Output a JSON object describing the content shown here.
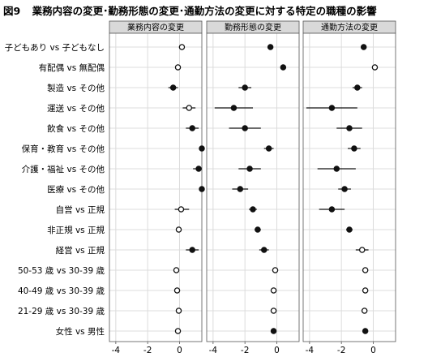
{
  "figure": {
    "figure_number": "図9",
    "title": "業務内容の変更･勤務形態の変更･通勤方法の変更に対する特定の職種の影響"
  },
  "chart_data": {
    "type": "scatter",
    "style": "forest-plot with point estimates and horizontal error bars; filled dot = significant, open dot = not significant",
    "grid": true,
    "shared_rows": true,
    "categories": [
      "子どもあり vs 子どもなし",
      "有配偶 vs 無配偶",
      "製造 vs その他",
      "運送 vs その他",
      "飲食 vs その他",
      "保育・教育 vs その他",
      "介護・福祉 vs その他",
      "医療 vs その他",
      "自営 vs 正規",
      "非正規 vs 正規",
      "経営 vs 正規",
      "50-53 歳 vs 30-39 歳",
      "40-49 歳 vs 30-39 歳",
      "21-29 歳 vs 30-39 歳",
      "女性 vs 男性"
    ],
    "panels": [
      {
        "name": "業務内容の変更",
        "xlim": [
          -4.4,
          1.4
        ],
        "xticks": [
          -4,
          -2,
          0
        ],
        "xtick_labels": [
          "-4",
          "-2",
          "0"
        ],
        "points": [
          {
            "x": 0.15,
            "lo": 0.0,
            "hi": 0.3,
            "filled": false
          },
          {
            "x": -0.1,
            "lo": -0.2,
            "hi": 0.0,
            "filled": false
          },
          {
            "x": -0.4,
            "lo": -0.7,
            "hi": -0.1,
            "filled": true
          },
          {
            "x": 0.6,
            "lo": 0.2,
            "hi": 1.0,
            "filled": false
          },
          {
            "x": 0.8,
            "lo": 0.4,
            "hi": 1.2,
            "filled": true
          },
          {
            "x": 1.5,
            "lo": 1.35,
            "hi": 1.65,
            "filled": true
          },
          {
            "x": 1.2,
            "lo": 0.85,
            "hi": 1.55,
            "filled": true
          },
          {
            "x": 1.4,
            "lo": 1.25,
            "hi": 1.55,
            "filled": true
          },
          {
            "x": 0.1,
            "lo": -0.3,
            "hi": 0.6,
            "filled": false
          },
          {
            "x": -0.05,
            "lo": -0.1,
            "hi": 0.0,
            "filled": false
          },
          {
            "x": 0.8,
            "lo": 0.4,
            "hi": 1.2,
            "filled": true
          },
          {
            "x": -0.2,
            "lo": -0.3,
            "hi": -0.1,
            "filled": false
          },
          {
            "x": -0.15,
            "lo": -0.25,
            "hi": -0.05,
            "filled": false
          },
          {
            "x": -0.05,
            "lo": -0.15,
            "hi": 0.05,
            "filled": false
          },
          {
            "x": -0.1,
            "lo": -0.15,
            "hi": -0.05,
            "filled": false
          }
        ]
      },
      {
        "name": "勤務形態の変更",
        "xlim": [
          -4.4,
          1.4
        ],
        "xticks": [
          -4,
          -2,
          0
        ],
        "xtick_labels": [
          "-4",
          "-2",
          "0"
        ],
        "points": [
          {
            "x": -0.4,
            "lo": -0.55,
            "hi": -0.25,
            "filled": true
          },
          {
            "x": 0.4,
            "lo": 0.3,
            "hi": 0.5,
            "filled": true
          },
          {
            "x": -2.0,
            "lo": -2.4,
            "hi": -1.6,
            "filled": true
          },
          {
            "x": -2.7,
            "lo": -3.9,
            "hi": -1.5,
            "filled": true
          },
          {
            "x": -2.0,
            "lo": -3.0,
            "hi": -1.0,
            "filled": true
          },
          {
            "x": -0.5,
            "lo": -0.8,
            "hi": -0.2,
            "filled": true
          },
          {
            "x": -1.7,
            "lo": -2.4,
            "hi": -1.0,
            "filled": true
          },
          {
            "x": -2.3,
            "lo": -2.8,
            "hi": -1.8,
            "filled": true
          },
          {
            "x": -1.5,
            "lo": -1.75,
            "hi": -1.25,
            "filled": true
          },
          {
            "x": -1.2,
            "lo": -1.4,
            "hi": -1.0,
            "filled": true
          },
          {
            "x": -0.8,
            "lo": -1.1,
            "hi": -0.5,
            "filled": true
          },
          {
            "x": -0.1,
            "lo": -0.2,
            "hi": 0.0,
            "filled": false
          },
          {
            "x": -0.2,
            "lo": -0.3,
            "hi": -0.1,
            "filled": false
          },
          {
            "x": -0.2,
            "lo": -0.3,
            "hi": -0.1,
            "filled": false
          },
          {
            "x": -0.2,
            "lo": -0.25,
            "hi": -0.15,
            "filled": true
          }
        ]
      },
      {
        "name": "通勤方法の変更",
        "xlim": [
          -4.4,
          1.4
        ],
        "xticks": [
          -4,
          -2,
          0
        ],
        "xtick_labels": [
          "-4",
          "-2",
          "0"
        ],
        "points": [
          {
            "x": -0.6,
            "lo": -0.75,
            "hi": -0.45,
            "filled": true
          },
          {
            "x": 0.1,
            "lo": 0.0,
            "hi": 0.2,
            "filled": false
          },
          {
            "x": -1.0,
            "lo": -1.3,
            "hi": -0.7,
            "filled": true
          },
          {
            "x": -2.6,
            "lo": -4.2,
            "hi": -1.0,
            "filled": true
          },
          {
            "x": -1.5,
            "lo": -2.3,
            "hi": -0.7,
            "filled": true
          },
          {
            "x": -1.2,
            "lo": -1.6,
            "hi": -0.8,
            "filled": true
          },
          {
            "x": -2.3,
            "lo": -3.5,
            "hi": -1.1,
            "filled": true
          },
          {
            "x": -1.8,
            "lo": -2.2,
            "hi": -1.4,
            "filled": true
          },
          {
            "x": -2.6,
            "lo": -3.4,
            "hi": -1.8,
            "filled": true
          },
          {
            "x": -1.5,
            "lo": -1.7,
            "hi": -1.3,
            "filled": true
          },
          {
            "x": -0.7,
            "lo": -1.1,
            "hi": -0.3,
            "filled": false
          },
          {
            "x": -0.5,
            "lo": -0.65,
            "hi": -0.35,
            "filled": false
          },
          {
            "x": -0.5,
            "lo": -0.6,
            "hi": -0.4,
            "filled": false
          },
          {
            "x": -0.55,
            "lo": -0.65,
            "hi": -0.45,
            "filled": false
          },
          {
            "x": -0.5,
            "lo": -0.55,
            "hi": -0.45,
            "filled": true
          }
        ]
      }
    ]
  },
  "colors": {
    "panel_bg": "#ffffff",
    "header_bg": "#d9d9d9",
    "frame": "#555555",
    "grid": "#dcdcdc",
    "marker": "#111111",
    "text": "#000000"
  }
}
